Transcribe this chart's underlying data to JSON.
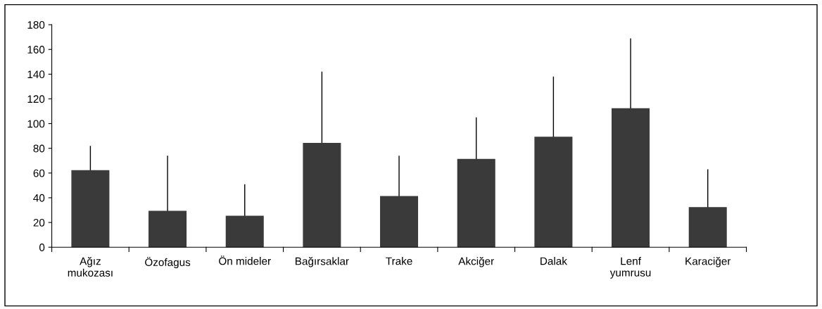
{
  "chart_data": {
    "type": "bar",
    "categories": [
      "Ağız\nmukozası",
      "Özofagus",
      "Ön mideler",
      "Bağırsaklar",
      "Trake",
      "Akciğer",
      "Dalak",
      "Lenf\nyumrusu",
      "Karaciğer"
    ],
    "values": [
      62,
      29,
      25,
      84,
      41,
      71,
      89,
      112,
      32
    ],
    "errors": [
      [
        62,
        82
      ],
      [
        29,
        74
      ],
      [
        25,
        51
      ],
      [
        84,
        142
      ],
      [
        41,
        74
      ],
      [
        71,
        105
      ],
      [
        89,
        138
      ],
      [
        112,
        169
      ],
      [
        32,
        63
      ]
    ],
    "color": "#3a3a3a",
    "ylim": [
      0,
      180
    ],
    "yticks": [
      0,
      20,
      40,
      60,
      80,
      100,
      120,
      140,
      160,
      180
    ],
    "grid": false
  }
}
